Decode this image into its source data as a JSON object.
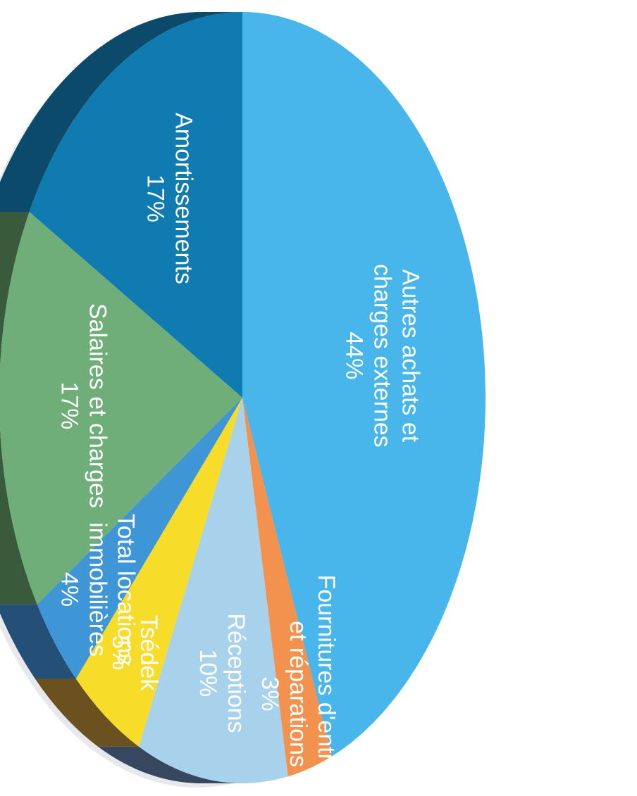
{
  "chart_data": {
    "type": "pie",
    "title": "",
    "categories": [
      "Autres achats et charges externes",
      "Fournitures d'entretien et réparations",
      "Réceptions",
      "Tsédek",
      "Total locations immobilières",
      "Salaires et charges",
      "Amortissements"
    ],
    "values": [
      44,
      3,
      10,
      5,
      4,
      17,
      17
    ],
    "value_labels": [
      "44%",
      "3%",
      "10%",
      "5%",
      "4%",
      "17%",
      "17%"
    ],
    "label_lines": [
      [
        "Autres achats et",
        "charges externes"
      ],
      [
        "Fournitures d'entretien",
        "et réparations"
      ],
      [
        "Réceptions"
      ],
      [
        "Tsédek"
      ],
      [
        "Total locations",
        "immobilières"
      ],
      [
        "Salaires et charges"
      ],
      [
        "Amortissements"
      ]
    ],
    "colors": [
      "#48b6ea",
      "#f3924f",
      "#a8d2ec",
      "#f7dc2a",
      "#3f96d6",
      "#6fae79",
      "#0f7bb0"
    ],
    "side_colors": [
      "#2e4a6a",
      "#5a3a22",
      "#37475f",
      "#6b5020",
      "#245078",
      "#3a5a3c",
      "#0b4a6a"
    ],
    "style": "3d-tilted",
    "orientation": "rotated-90-ccw",
    "legend": "none",
    "label_color": "#ffffff"
  }
}
